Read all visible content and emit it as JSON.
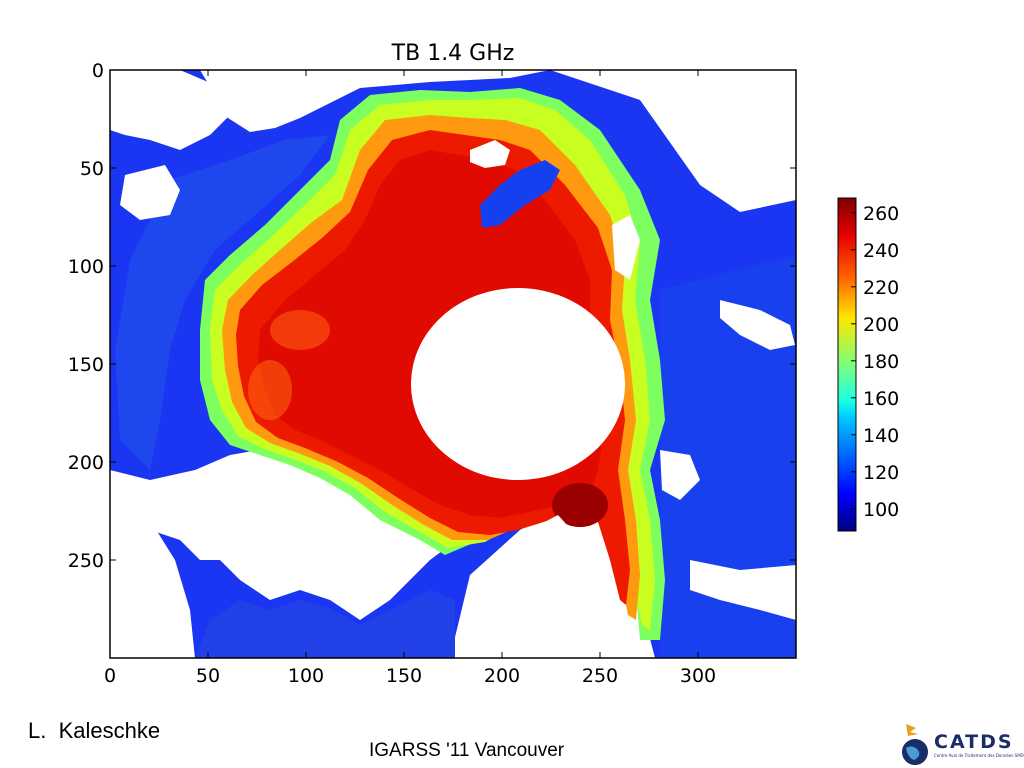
{
  "slide": {
    "author": "L.  Kaleschke",
    "footer": "IGARSS '11 Vancouver",
    "logo": {
      "text": "CATDS",
      "subtitle": "Centre Aval de Traitement des Données SMOS",
      "icon": "globe-bird-logo",
      "color": "#1b2d68"
    }
  },
  "chart_data": {
    "type": "heatmap",
    "title": "TB 1.4 GHz",
    "xlabel": "",
    "ylabel": "",
    "xlim": [
      0,
      350
    ],
    "ylim": [
      300,
      0
    ],
    "xticks": [
      0,
      50,
      100,
      150,
      200,
      250,
      300
    ],
    "yticks": [
      0,
      50,
      100,
      150,
      200,
      250
    ],
    "colorbar": {
      "min": 88,
      "max": 268,
      "ticks": [
        100,
        120,
        140,
        160,
        180,
        200,
        220,
        240,
        260
      ],
      "colormap": "jet",
      "placement": "right"
    },
    "grid": false,
    "notes": "Arctic brightness temperature map; white = land/no data, circular pole hole near center"
  }
}
